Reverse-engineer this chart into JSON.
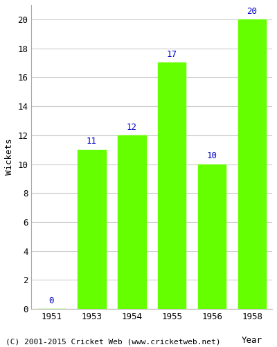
{
  "years": [
    "1951",
    "1953",
    "1954",
    "1955",
    "1956",
    "1958"
  ],
  "values": [
    0,
    11,
    12,
    17,
    10,
    20
  ],
  "bar_color": "#66ff00",
  "bar_edgecolor": "#66ff00",
  "label_color": "#0000cc",
  "label_fontsize": 9,
  "ylabel": "Wickets",
  "xlabel": "Year",
  "ylim": [
    0,
    21
  ],
  "yticks": [
    0,
    2,
    4,
    6,
    8,
    10,
    12,
    14,
    16,
    18,
    20
  ],
  "footer": "(C) 2001-2015 Cricket Web (www.cricketweb.net)",
  "footer_fontsize": 8,
  "grid_color": "#cccccc",
  "background_color": "#ffffff",
  "axis_label_fontsize": 9,
  "tick_fontsize": 9
}
